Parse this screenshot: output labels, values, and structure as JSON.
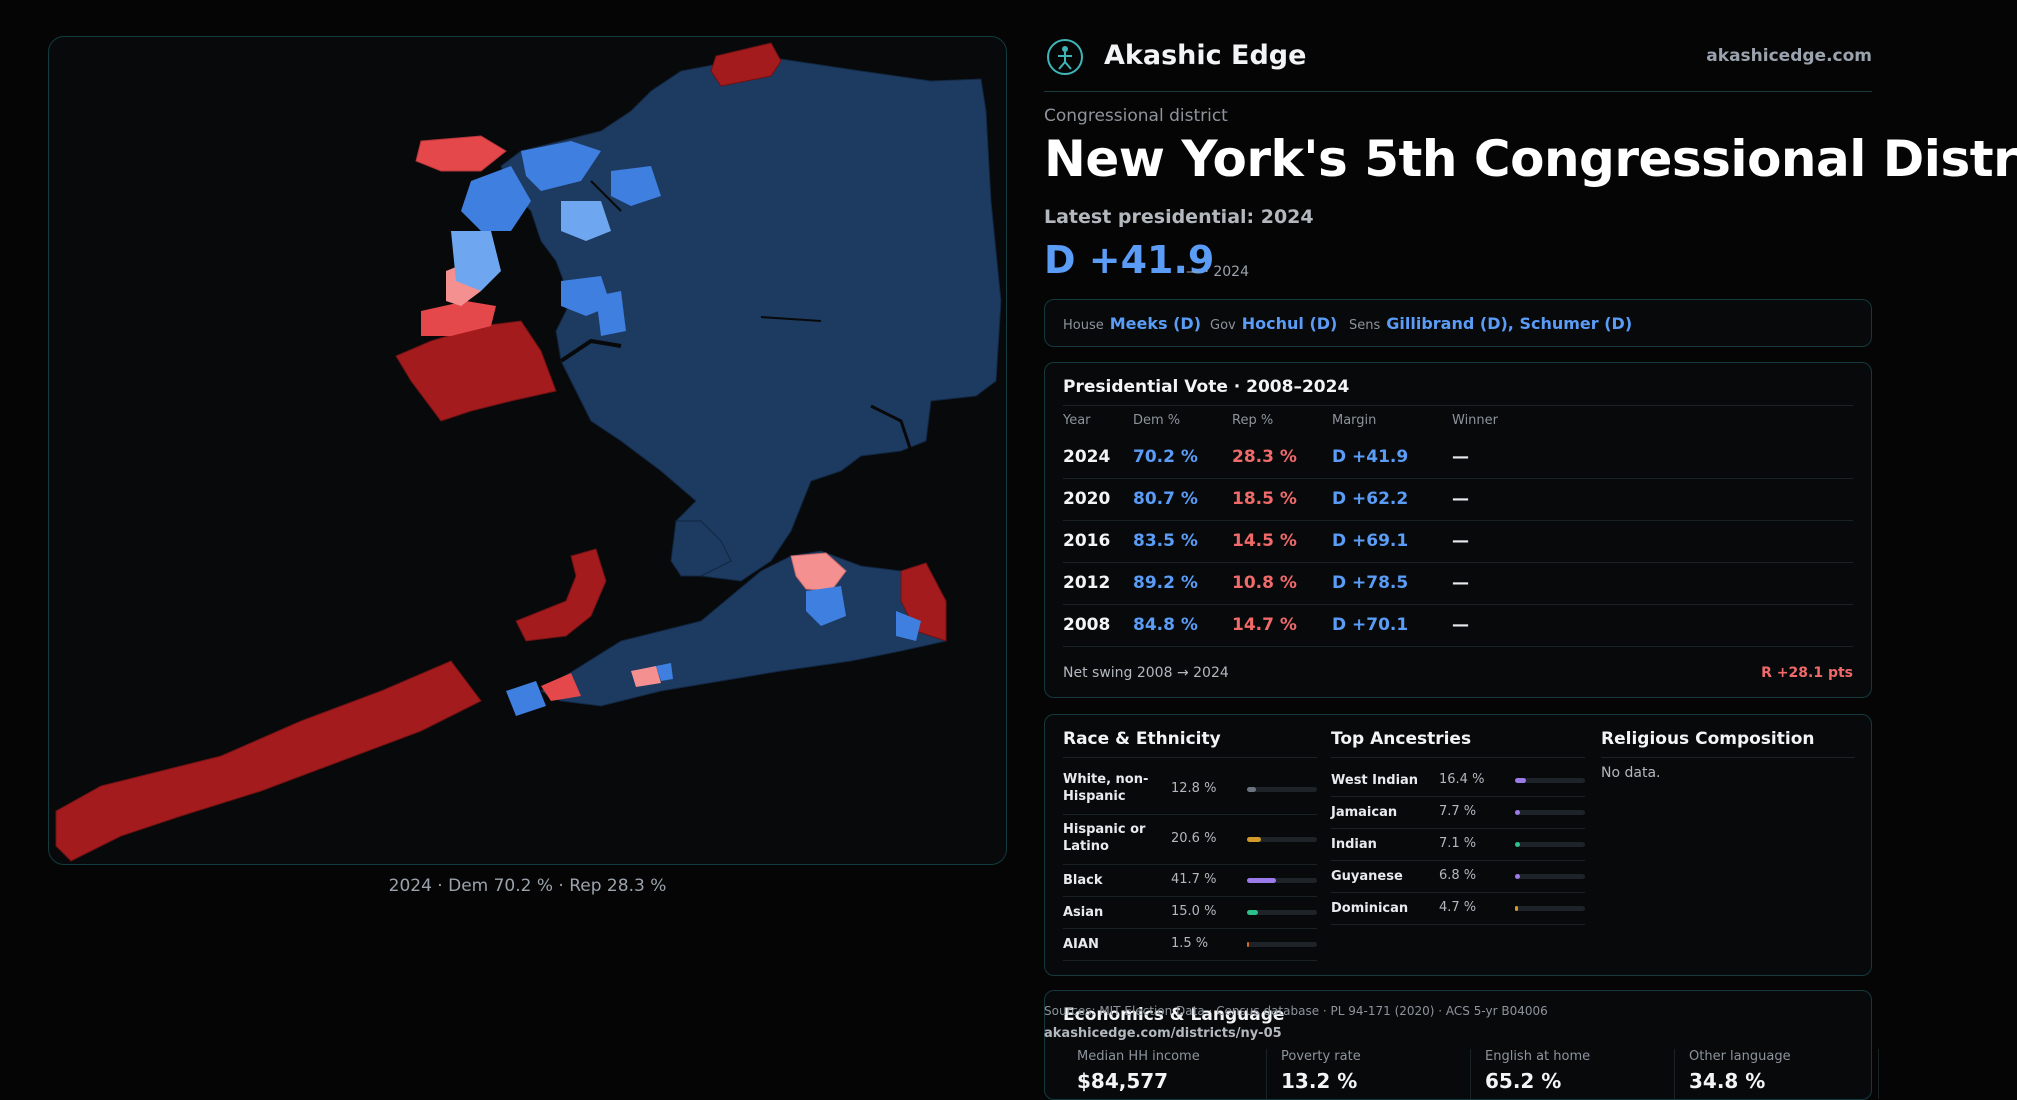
{
  "map": {
    "caption": "2024 · Dem 70.2 % · Rep 28.3 %",
    "colors": {
      "dem_dark": "#1d3a60",
      "dem_mid": "#3f7fe0",
      "dem_light": "#6ea7f0",
      "rep_dark": "#a41b1e",
      "rep_mid": "#e5484b",
      "rep_light": "#f59090"
    }
  },
  "brand": {
    "name": "Akashic Edge",
    "url": "akashicedge.com",
    "logo_icon": "stick-figure-icon"
  },
  "district": {
    "kicker": "Congressional district",
    "title": "New York's  5th Congressional Distr",
    "latest_label": "Latest presidential: 2024",
    "margin": "D +41.9",
    "margin_sub": "— · 2024"
  },
  "officials": [
    {
      "label": "House",
      "value": "Meeks (D)"
    },
    {
      "label": "Gov",
      "value": "Hochul (D)"
    },
    {
      "label": "Sens",
      "value": "Gillibrand (D), Schumer (D)"
    }
  ],
  "presidential": {
    "title": "Presidential Vote · 2008–2024",
    "headers": [
      "Year",
      "Dem %",
      "Rep %",
      "Margin",
      "Winner"
    ],
    "rows": [
      {
        "year": "2024",
        "dem": "70.2 %",
        "rep": "28.3 %",
        "margin": "D +41.9",
        "winner": "—"
      },
      {
        "year": "2020",
        "dem": "80.7 %",
        "rep": "18.5 %",
        "margin": "D +62.2",
        "winner": "—"
      },
      {
        "year": "2016",
        "dem": "83.5 %",
        "rep": "14.5 %",
        "margin": "D +69.1",
        "winner": "—"
      },
      {
        "year": "2012",
        "dem": "89.2 %",
        "rep": "10.8 %",
        "margin": "D +78.5",
        "winner": "—"
      },
      {
        "year": "2008",
        "dem": "84.8 %",
        "rep": "14.7 %",
        "margin": "D +70.1",
        "winner": "—"
      }
    ],
    "swing_label": "Net swing 2008 → 2024",
    "swing_value": "R +28.1 pts"
  },
  "race": {
    "title": "Race & Ethnicity",
    "items": [
      {
        "label": "White, non-Hispanic",
        "pct": "12.8 %",
        "value": 12.8,
        "color": "#6b7280"
      },
      {
        "label": "Hispanic or Latino",
        "pct": "20.6 %",
        "value": 20.6,
        "color": "#d19a2a"
      },
      {
        "label": "Black",
        "pct": "41.7 %",
        "value": 41.7,
        "color": "#9b7bea"
      },
      {
        "label": "Asian",
        "pct": "15.0 %",
        "value": 15.0,
        "color": "#2cc08a"
      },
      {
        "label": "AIAN",
        "pct": "1.5 %",
        "value": 1.5,
        "color": "#d9662a"
      }
    ]
  },
  "ancestry": {
    "title": "Top Ancestries",
    "items": [
      {
        "label": "West Indian",
        "pct": "16.4 %",
        "value": 16.4,
        "color": "#9b7bea"
      },
      {
        "label": "Jamaican",
        "pct": "7.7 %",
        "value": 7.7,
        "color": "#9b7bea"
      },
      {
        "label": "Indian",
        "pct": "7.1 %",
        "value": 7.1,
        "color": "#2cc08a"
      },
      {
        "label": "Guyanese",
        "pct": "6.8 %",
        "value": 6.8,
        "color": "#9b7bea"
      },
      {
        "label": "Dominican",
        "pct": "4.7 %",
        "value": 4.7,
        "color": "#d19a2a"
      }
    ]
  },
  "religion": {
    "title": "Religious Composition",
    "empty": "No data."
  },
  "economics": {
    "title": "Economics & Language",
    "cells": [
      {
        "label": "Median HH income",
        "value": "$84,577"
      },
      {
        "label": "Poverty rate",
        "value": "13.2 %"
      },
      {
        "label": "English at home",
        "value": "65.2 %"
      },
      {
        "label": "Other language",
        "value": "34.8 %"
      }
    ]
  },
  "source": {
    "text": "Sources: MIT Election Data · Census database · PL 94-171 (2020) · ACS 5-yr B04006",
    "url": "akashicedge.com/districts/ny-05"
  }
}
